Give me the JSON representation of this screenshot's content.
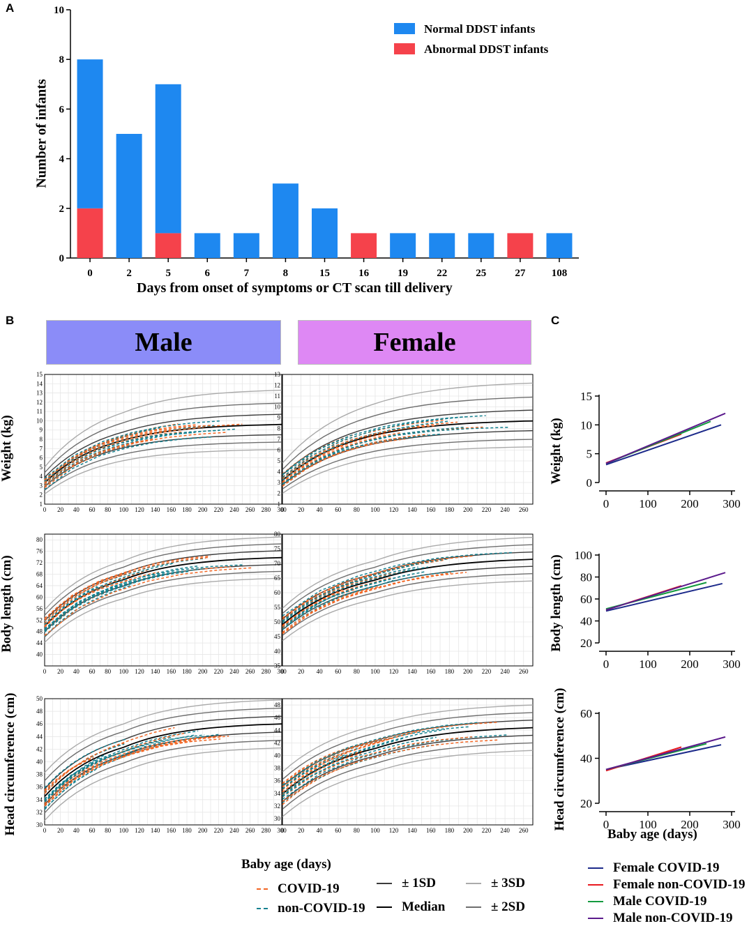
{
  "panels": {
    "a": "A",
    "b": "B",
    "c": "C"
  },
  "chart_data": [
    {
      "type": "bar",
      "id": "A",
      "stacked": true,
      "categories": [
        "0",
        "2",
        "5",
        "6",
        "7",
        "8",
        "15",
        "16",
        "19",
        "22",
        "25",
        "27",
        "108"
      ],
      "series": [
        {
          "name": "Abnormal DDST infants",
          "color": "#f5424b",
          "values": [
            2,
            0,
            1,
            0,
            0,
            0,
            0,
            1,
            0,
            0,
            0,
            1,
            0
          ]
        },
        {
          "name": "Normal DDST infants",
          "color": "#1e88f0",
          "values": [
            6,
            5,
            6,
            1,
            1,
            3,
            2,
            0,
            1,
            1,
            1,
            0,
            1
          ]
        }
      ],
      "xlabel": "Days from onset of symptoms or CT scan till delivery",
      "ylabel": "Number of infants",
      "ylim": [
        0,
        10
      ],
      "yticks": [
        "0",
        "2",
        "4",
        "6",
        "8",
        "10"
      ],
      "legend": [
        "Normal DDST infants",
        "Abnormal DDST infants"
      ]
    },
    {
      "type": "line",
      "id": "B",
      "title_male": "Male",
      "title_female": "Female",
      "xlabel": "Baby age (days)",
      "rows": [
        {
          "ylabel": "Weight (kg)",
          "male": {
            "ylim": [
              1,
              15
            ],
            "xlim": [
              0,
              300
            ],
            "yticks": [
              "1",
              "2",
              "3",
              "4",
              "5",
              "6",
              "7",
              "8",
              "9",
              "10",
              "11",
              "12",
              "13",
              "14",
              "15"
            ],
            "xticks": [
              "0",
              "20",
              "40",
              "60",
              "80",
              "100",
              "120",
              "140",
              "160",
              "180",
              "200",
              "220",
              "240",
              "260",
              "280",
              "300"
            ],
            "refs": [
              {
                "s": "-3SD",
                "v": [
                  2.1,
                  5.7,
                  6.9
                ]
              },
              {
                "s": "-2SD",
                "v": [
                  2.5,
                  6.4,
                  7.7
                ]
              },
              {
                "s": "-1SD",
                "v": [
                  2.9,
                  7.1,
                  8.5
                ]
              },
              {
                "s": "Median",
                "v": [
                  3.3,
                  7.9,
                  9.6
                ]
              },
              {
                "s": "+1SD",
                "v": [
                  3.9,
                  8.8,
                  10.7
                ]
              },
              {
                "s": "+2SD",
                "v": [
                  4.4,
                  9.8,
                  11.9
                ]
              },
              {
                "s": "+3SD",
                "v": [
                  5.0,
                  10.9,
                  13.3
                ]
              }
            ]
          },
          "female": {
            "ylim": [
              1,
              13
            ],
            "xlim": [
              0,
              270
            ],
            "yticks": [
              "1",
              "2",
              "3",
              "4",
              "5",
              "6",
              "7",
              "8",
              "9",
              "10",
              "11",
              "12",
              "13"
            ],
            "xticks": [
              "0",
              "20",
              "40",
              "60",
              "80",
              "100",
              "120",
              "140",
              "160",
              "180",
              "200",
              "220",
              "240",
              "260"
            ],
            "refs": [
              {
                "s": "-3SD",
                "v": [
                  2.0,
                  5.3,
                  6.3
                ]
              },
              {
                "s": "-2SD",
                "v": [
                  2.4,
                  5.9,
                  7.0
                ]
              },
              {
                "s": "-1SD",
                "v": [
                  2.8,
                  6.6,
                  7.8
                ]
              },
              {
                "s": "Median",
                "v": [
                  3.2,
                  7.4,
                  8.7
                ]
              },
              {
                "s": "+1SD",
                "v": [
                  3.7,
                  8.2,
                  9.7
                ]
              },
              {
                "s": "+2SD",
                "v": [
                  4.2,
                  9.2,
                  10.9
                ]
              },
              {
                "s": "+3SD",
                "v": [
                  4.8,
                  10.3,
                  12.2
                ]
              }
            ]
          }
        },
        {
          "ylabel": "Body length (cm)",
          "male": {
            "ylim": [
              36,
              82
            ],
            "xlim": [
              0,
              300
            ],
            "yticks": [
              "40",
              "44",
              "48",
              "52",
              "56",
              "60",
              "64",
              "68",
              "72",
              "76",
              "80"
            ],
            "xticks": [
              "0",
              "20",
              "40",
              "60",
              "80",
              "100",
              "120",
              "140",
              "160",
              "180",
              "200",
              "220",
              "240",
              "260",
              "280",
              "300"
            ],
            "refs": [
              {
                "s": "-3SD",
                "v": [
                  44.2,
                  59.5,
                  66.6
                ]
              },
              {
                "s": "-2SD",
                "v": [
                  46.1,
                  61.7,
                  69.0
                ]
              },
              {
                "s": "-1SD",
                "v": [
                  48.0,
                  63.9,
                  71.4
                ]
              },
              {
                "s": "Median",
                "v": [
                  49.9,
                  66.1,
                  73.8
                ]
              },
              {
                "s": "+1SD",
                "v": [
                  51.8,
                  68.3,
                  76.2
                ]
              },
              {
                "s": "+2SD",
                "v": [
                  53.7,
                  70.5,
                  78.6
                ]
              },
              {
                "s": "+3SD",
                "v": [
                  55.6,
                  72.7,
                  81.0
                ]
              }
            ]
          },
          "female": {
            "ylim": [
              35,
              80
            ],
            "xlim": [
              0,
              270
            ],
            "yticks": [
              "35",
              "40",
              "45",
              "50",
              "55",
              "60",
              "65",
              "70",
              "75",
              "80"
            ],
            "xticks": [
              "0",
              "20",
              "40",
              "60",
              "80",
              "100",
              "120",
              "140",
              "160",
              "180",
              "200",
              "220",
              "240",
              "260"
            ],
            "refs": [
              {
                "s": "-3SD",
                "v": [
                  43.6,
                  57.8,
                  64.0
                ]
              },
              {
                "s": "-2SD",
                "v": [
                  45.4,
                  60.0,
                  66.5
                ]
              },
              {
                "s": "-1SD",
                "v": [
                  47.3,
                  62.2,
                  69.0
                ]
              },
              {
                "s": "Median",
                "v": [
                  49.1,
                  64.3,
                  71.4
                ]
              },
              {
                "s": "+1SD",
                "v": [
                  51.0,
                  66.5,
                  73.9
                ]
              },
              {
                "s": "+2SD",
                "v": [
                  52.9,
                  68.7,
                  76.4
                ]
              },
              {
                "s": "+3SD",
                "v": [
                  54.7,
                  70.9,
                  78.9
                ]
              }
            ]
          }
        },
        {
          "ylabel": "Head circumference (cm)",
          "male": {
            "ylim": [
              30,
              50
            ],
            "xlim": [
              0,
              300
            ],
            "yticks": [
              "30",
              "32",
              "34",
              "36",
              "38",
              "40",
              "42",
              "44",
              "46",
              "48",
              "50"
            ],
            "xticks": [
              "0",
              "20",
              "40",
              "60",
              "80",
              "100",
              "120",
              "140",
              "160",
              "180",
              "200",
              "220",
              "240",
              "260",
              "280",
              "300"
            ],
            "refs": [
              {
                "s": "-3SD",
                "v": [
                  30.7,
                  38.5,
                  42.2
                ]
              },
              {
                "s": "-2SD",
                "v": [
                  31.9,
                  39.8,
                  43.4
                ]
              },
              {
                "s": "-1SD",
                "v": [
                  33.2,
                  41.0,
                  44.7
                ]
              },
              {
                "s": "Median",
                "v": [
                  34.5,
                  42.3,
                  46.0
                ]
              },
              {
                "s": "+1SD",
                "v": [
                  35.7,
                  43.5,
                  47.2
                ]
              },
              {
                "s": "+2SD",
                "v": [
                  37.0,
                  44.8,
                  48.5
                ]
              },
              {
                "s": "+3SD",
                "v": [
                  38.3,
                  46.0,
                  49.8
                ]
              }
            ]
          },
          "female": {
            "ylim": [
              29,
              49
            ],
            "xlim": [
              0,
              270
            ],
            "yticks": [
              "30",
              "32",
              "34",
              "36",
              "38",
              "40",
              "42",
              "44",
              "46",
              "48"
            ],
            "xticks": [
              "0",
              "20",
              "40",
              "60",
              "80",
              "100",
              "120",
              "140",
              "160",
              "180",
              "200",
              "220",
              "240",
              "260"
            ],
            "refs": [
              {
                "s": "-3SD",
                "v": [
                  30.3,
                  37.4,
                  40.8
                ]
              },
              {
                "s": "-2SD",
                "v": [
                  31.5,
                  38.7,
                  42.0
                ]
              },
              {
                "s": "-1SD",
                "v": [
                  32.7,
                  39.9,
                  43.2
                ]
              },
              {
                "s": "Median",
                "v": [
                  33.9,
                  41.1,
                  44.4
                ]
              },
              {
                "s": "+1SD",
                "v": [
                  35.1,
                  42.3,
                  45.6
                ]
              },
              {
                "s": "+2SD",
                "v": [
                  36.2,
                  43.5,
                  46.8
                ]
              },
              {
                "s": "+3SD",
                "v": [
                  37.4,
                  44.7,
                  48.0
                ]
              }
            ]
          }
        }
      ],
      "legend": {
        "covid": "COVID-19",
        "noncovid": "non-COVID-19",
        "sd1": "± 1SD",
        "median": "Median",
        "sd3": "± 3SD",
        "sd2": "± 2SD"
      },
      "colors": {
        "covid": "#f26522",
        "noncovid": "#14808f",
        "sd1": "#3b3b3b",
        "median": "#000000",
        "sd2": "#6e6e6e",
        "sd3": "#aaaaaa"
      }
    },
    {
      "type": "line",
      "id": "C",
      "xlabel": "Baby age (days)",
      "xlim": [
        0,
        300
      ],
      "xticks": [
        "0",
        "100",
        "200",
        "300"
      ],
      "series_names": [
        "Female COVID-19",
        "Female non-COVID-19",
        "Male COVID-19",
        "Male non-COVID-19"
      ],
      "series_colors": [
        "#1c2a8a",
        "#e8191f",
        "#139a3f",
        "#5b1a8c"
      ],
      "plots": [
        {
          "ylabel": "Weight (kg)",
          "ylim": [
            0,
            15
          ],
          "yticks": [
            "0",
            "5",
            "10",
            "15"
          ],
          "lines": [
            {
              "s": 0,
              "x": [
                0,
                275
              ],
              "y": [
                3.1,
                10.0
              ]
            },
            {
              "s": 1,
              "x": [
                0,
                180
              ],
              "y": [
                3.4,
                8.4
              ]
            },
            {
              "s": 2,
              "x": [
                0,
                250
              ],
              "y": [
                3.3,
                10.6
              ]
            },
            {
              "s": 3,
              "x": [
                0,
                285
              ],
              "y": [
                3.3,
                12.0
              ]
            }
          ]
        },
        {
          "ylabel": "Body length (cm)",
          "ylim": [
            20,
            100
          ],
          "yticks": [
            "20",
            "40",
            "60",
            "80",
            "100"
          ],
          "lines": [
            {
              "s": 0,
              "x": [
                0,
                278
              ],
              "y": [
                49,
                74
              ]
            },
            {
              "s": 1,
              "x": [
                0,
                180
              ],
              "y": [
                50,
                72
              ]
            },
            {
              "s": 2,
              "x": [
                0,
                240
              ],
              "y": [
                51,
                75
              ]
            },
            {
              "s": 3,
              "x": [
                0,
                285
              ],
              "y": [
                50,
                84
              ]
            }
          ]
        },
        {
          "ylabel": "Head circumference (cm)",
          "ylim": [
            20,
            60
          ],
          "yticks": [
            "20",
            "40",
            "60"
          ],
          "lines": [
            {
              "s": 0,
              "x": [
                0,
                275
              ],
              "y": [
                35,
                46
              ]
            },
            {
              "s": 1,
              "x": [
                0,
                180
              ],
              "y": [
                34.5,
                45
              ]
            },
            {
              "s": 2,
              "x": [
                0,
                240
              ],
              "y": [
                35,
                46.5
              ]
            },
            {
              "s": 3,
              "x": [
                0,
                285
              ],
              "y": [
                35,
                49.5
              ]
            }
          ]
        }
      ]
    }
  ]
}
